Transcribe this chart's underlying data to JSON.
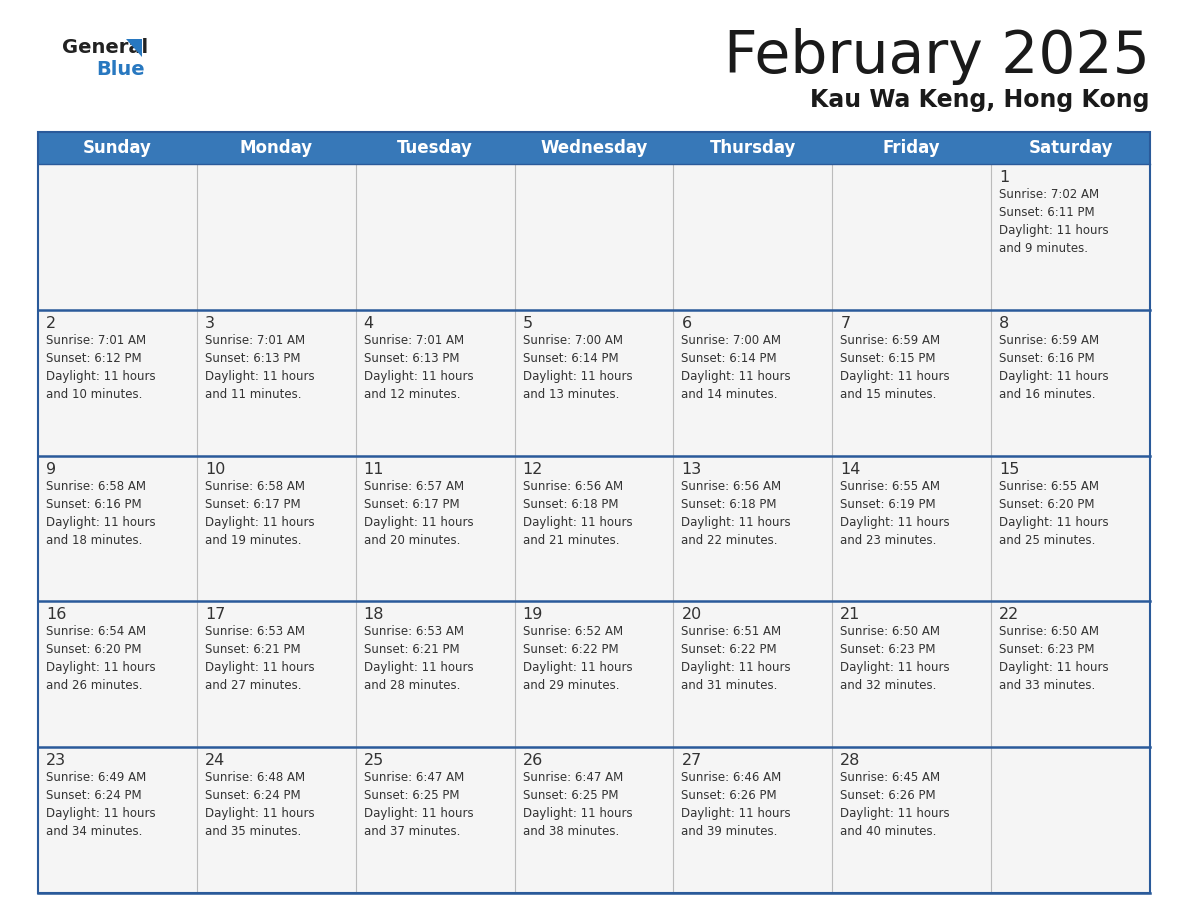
{
  "title": "February 2025",
  "subtitle": "Kau Wa Keng, Hong Kong",
  "header_bg_color": "#3778b8",
  "header_text_color": "#ffffff",
  "cell_bg_color": "#f5f5f5",
  "border_color": "#2a5a9a",
  "text_color": "#333333",
  "logo_text_color": "#222222",
  "logo_blue_color": "#2878c0",
  "days_of_week": [
    "Sunday",
    "Monday",
    "Tuesday",
    "Wednesday",
    "Thursday",
    "Friday",
    "Saturday"
  ],
  "weeks": [
    [
      {
        "day": null,
        "info": null
      },
      {
        "day": null,
        "info": null
      },
      {
        "day": null,
        "info": null
      },
      {
        "day": null,
        "info": null
      },
      {
        "day": null,
        "info": null
      },
      {
        "day": null,
        "info": null
      },
      {
        "day": "1",
        "info": "Sunrise: 7:02 AM\nSunset: 6:11 PM\nDaylight: 11 hours\nand 9 minutes."
      }
    ],
    [
      {
        "day": "2",
        "info": "Sunrise: 7:01 AM\nSunset: 6:12 PM\nDaylight: 11 hours\nand 10 minutes."
      },
      {
        "day": "3",
        "info": "Sunrise: 7:01 AM\nSunset: 6:13 PM\nDaylight: 11 hours\nand 11 minutes."
      },
      {
        "day": "4",
        "info": "Sunrise: 7:01 AM\nSunset: 6:13 PM\nDaylight: 11 hours\nand 12 minutes."
      },
      {
        "day": "5",
        "info": "Sunrise: 7:00 AM\nSunset: 6:14 PM\nDaylight: 11 hours\nand 13 minutes."
      },
      {
        "day": "6",
        "info": "Sunrise: 7:00 AM\nSunset: 6:14 PM\nDaylight: 11 hours\nand 14 minutes."
      },
      {
        "day": "7",
        "info": "Sunrise: 6:59 AM\nSunset: 6:15 PM\nDaylight: 11 hours\nand 15 minutes."
      },
      {
        "day": "8",
        "info": "Sunrise: 6:59 AM\nSunset: 6:16 PM\nDaylight: 11 hours\nand 16 minutes."
      }
    ],
    [
      {
        "day": "9",
        "info": "Sunrise: 6:58 AM\nSunset: 6:16 PM\nDaylight: 11 hours\nand 18 minutes."
      },
      {
        "day": "10",
        "info": "Sunrise: 6:58 AM\nSunset: 6:17 PM\nDaylight: 11 hours\nand 19 minutes."
      },
      {
        "day": "11",
        "info": "Sunrise: 6:57 AM\nSunset: 6:17 PM\nDaylight: 11 hours\nand 20 minutes."
      },
      {
        "day": "12",
        "info": "Sunrise: 6:56 AM\nSunset: 6:18 PM\nDaylight: 11 hours\nand 21 minutes."
      },
      {
        "day": "13",
        "info": "Sunrise: 6:56 AM\nSunset: 6:18 PM\nDaylight: 11 hours\nand 22 minutes."
      },
      {
        "day": "14",
        "info": "Sunrise: 6:55 AM\nSunset: 6:19 PM\nDaylight: 11 hours\nand 23 minutes."
      },
      {
        "day": "15",
        "info": "Sunrise: 6:55 AM\nSunset: 6:20 PM\nDaylight: 11 hours\nand 25 minutes."
      }
    ],
    [
      {
        "day": "16",
        "info": "Sunrise: 6:54 AM\nSunset: 6:20 PM\nDaylight: 11 hours\nand 26 minutes."
      },
      {
        "day": "17",
        "info": "Sunrise: 6:53 AM\nSunset: 6:21 PM\nDaylight: 11 hours\nand 27 minutes."
      },
      {
        "day": "18",
        "info": "Sunrise: 6:53 AM\nSunset: 6:21 PM\nDaylight: 11 hours\nand 28 minutes."
      },
      {
        "day": "19",
        "info": "Sunrise: 6:52 AM\nSunset: 6:22 PM\nDaylight: 11 hours\nand 29 minutes."
      },
      {
        "day": "20",
        "info": "Sunrise: 6:51 AM\nSunset: 6:22 PM\nDaylight: 11 hours\nand 31 minutes."
      },
      {
        "day": "21",
        "info": "Sunrise: 6:50 AM\nSunset: 6:23 PM\nDaylight: 11 hours\nand 32 minutes."
      },
      {
        "day": "22",
        "info": "Sunrise: 6:50 AM\nSunset: 6:23 PM\nDaylight: 11 hours\nand 33 minutes."
      }
    ],
    [
      {
        "day": "23",
        "info": "Sunrise: 6:49 AM\nSunset: 6:24 PM\nDaylight: 11 hours\nand 34 minutes."
      },
      {
        "day": "24",
        "info": "Sunrise: 6:48 AM\nSunset: 6:24 PM\nDaylight: 11 hours\nand 35 minutes."
      },
      {
        "day": "25",
        "info": "Sunrise: 6:47 AM\nSunset: 6:25 PM\nDaylight: 11 hours\nand 37 minutes."
      },
      {
        "day": "26",
        "info": "Sunrise: 6:47 AM\nSunset: 6:25 PM\nDaylight: 11 hours\nand 38 minutes."
      },
      {
        "day": "27",
        "info": "Sunrise: 6:46 AM\nSunset: 6:26 PM\nDaylight: 11 hours\nand 39 minutes."
      },
      {
        "day": "28",
        "info": "Sunrise: 6:45 AM\nSunset: 6:26 PM\nDaylight: 11 hours\nand 40 minutes."
      },
      {
        "day": null,
        "info": null
      }
    ]
  ]
}
